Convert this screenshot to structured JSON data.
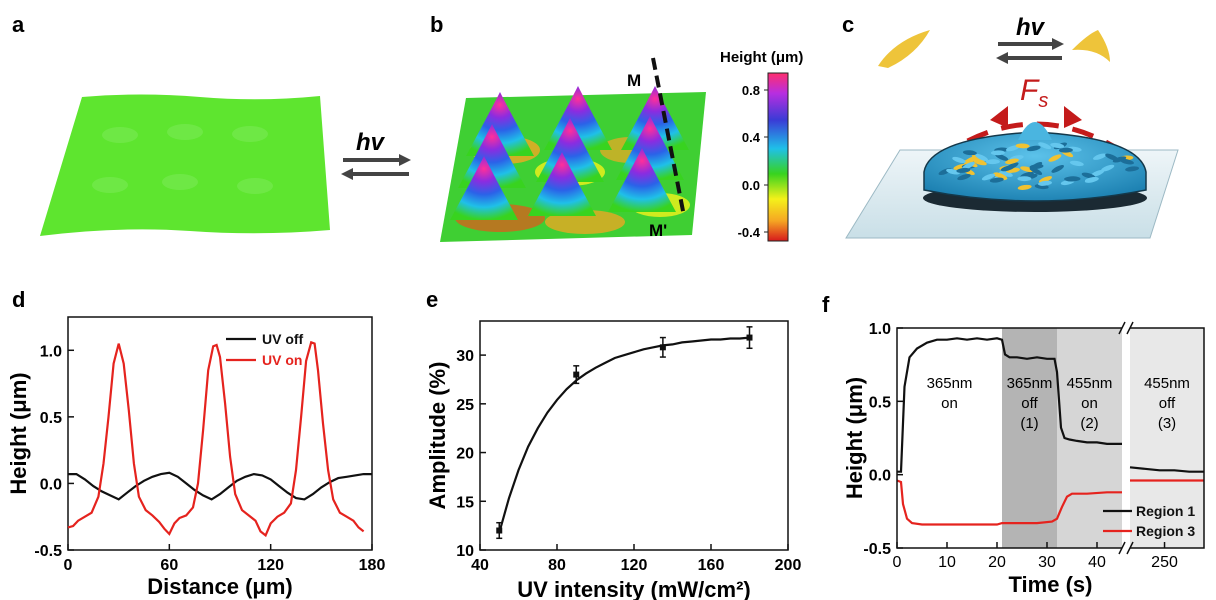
{
  "panels": {
    "a": "a",
    "b": "b",
    "c": "c",
    "d": "d",
    "e": "e",
    "f": "f"
  },
  "colors": {
    "surface_green": "#5ee52f",
    "black": "#111111",
    "red": "#e5231e",
    "uv_off": "#111111",
    "uv_on": "#e5231e",
    "colormap": [
      "#d7191c",
      "#f5a623",
      "#f4f11a",
      "#38d31f",
      "#1fc0e8",
      "#3a3bd6",
      "#b82ee0",
      "#ff2f6e"
    ],
    "shade_dark": "#b4b4b4",
    "shade_mid": "#d6d6d6",
    "shade_light": "#e8e8e8",
    "droplet": "#2d9fd0",
    "particle": "#f0c232",
    "force": "#c41b1b"
  },
  "annotations": {
    "hv": "hv",
    "fs_main": "F",
    "fs_sub": "s",
    "M": "M",
    "M_prime": "M'"
  },
  "colorbar": {
    "title": "Height (μm)",
    "ticks": [
      "0.8",
      "0.4",
      "0.0",
      "-0.4"
    ]
  },
  "chart_data": [
    {
      "panel": "d",
      "type": "line",
      "xlabel": "Distance (μm)",
      "ylabel": "Height (μm)",
      "xlim": [
        0,
        180
      ],
      "ylim": [
        -0.5,
        1.25
      ],
      "xticks": [
        "0",
        "60",
        "120",
        "180"
      ],
      "yticks": [
        "-0.5",
        "0.0",
        "0.5",
        "1.0"
      ],
      "legend_position": "top-right",
      "series": [
        {
          "name": "UV off",
          "color": "#111111",
          "x": [
            0,
            5,
            10,
            15,
            20,
            25,
            30,
            35,
            40,
            45,
            50,
            55,
            60,
            65,
            70,
            75,
            80,
            85,
            90,
            95,
            100,
            105,
            110,
            115,
            120,
            125,
            130,
            135,
            140,
            145,
            150,
            155,
            160,
            165,
            170,
            175,
            180
          ],
          "y": [
            0.07,
            0.07,
            0.03,
            -0.02,
            -0.06,
            -0.09,
            -0.12,
            -0.07,
            -0.02,
            0.02,
            0.05,
            0.07,
            0.08,
            0.05,
            0.0,
            -0.05,
            -0.09,
            -0.12,
            -0.08,
            -0.03,
            0.02,
            0.05,
            0.07,
            0.06,
            0.03,
            -0.02,
            -0.07,
            -0.11,
            -0.12,
            -0.08,
            -0.03,
            0.01,
            0.04,
            0.05,
            0.06,
            0.07,
            0.07
          ]
        },
        {
          "name": "UV on",
          "color": "#e5231e",
          "x": [
            0,
            3,
            6,
            10,
            14,
            18,
            21,
            24,
            27,
            30,
            33,
            36,
            39,
            42,
            46,
            50,
            54,
            57,
            60,
            63,
            66,
            70,
            74,
            77,
            80,
            83,
            86,
            88,
            90,
            93,
            96,
            99,
            103,
            107,
            111,
            114,
            117,
            120,
            124,
            128,
            132,
            135,
            138,
            141,
            144,
            146,
            148,
            151,
            154,
            157,
            161,
            165,
            169,
            172,
            175
          ],
          "y": [
            -0.33,
            -0.32,
            -0.28,
            -0.25,
            -0.22,
            -0.1,
            0.15,
            0.5,
            0.9,
            1.05,
            0.9,
            0.55,
            0.15,
            -0.1,
            -0.2,
            -0.24,
            -0.29,
            -0.34,
            -0.38,
            -0.3,
            -0.26,
            -0.24,
            -0.18,
            0.0,
            0.4,
            0.85,
            1.03,
            1.04,
            0.95,
            0.6,
            0.2,
            -0.08,
            -0.2,
            -0.24,
            -0.28,
            -0.36,
            -0.39,
            -0.3,
            -0.25,
            -0.22,
            -0.15,
            0.1,
            0.5,
            0.92,
            1.06,
            1.05,
            0.85,
            0.45,
            0.1,
            -0.12,
            -0.22,
            -0.25,
            -0.28,
            -0.33,
            -0.36
          ]
        }
      ]
    },
    {
      "panel": "e",
      "type": "scatter",
      "xlabel": "UV intensity (mW/cm²)",
      "ylabel": "Amplitude (%)",
      "xlim": [
        40,
        200
      ],
      "ylim": [
        10,
        33.5
      ],
      "xticks": [
        "40",
        "80",
        "120",
        "160",
        "200"
      ],
      "yticks": [
        "10",
        "15",
        "20",
        "25",
        "30"
      ],
      "points": {
        "x": [
          50,
          90,
          135,
          180
        ],
        "y": [
          12.0,
          28.0,
          30.8,
          31.8
        ],
        "err": [
          0.8,
          0.9,
          1.0,
          1.1
        ]
      },
      "fit": {
        "x": [
          50,
          55,
          60,
          65,
          70,
          75,
          80,
          85,
          90,
          95,
          100,
          105,
          110,
          115,
          120,
          125,
          130,
          135,
          140,
          145,
          150,
          155,
          160,
          165,
          170,
          175,
          180
        ],
        "y": [
          11.8,
          15.3,
          18.2,
          20.6,
          22.5,
          24.1,
          25.4,
          26.5,
          27.4,
          28.1,
          28.7,
          29.2,
          29.7,
          30.0,
          30.3,
          30.6,
          30.8,
          31.0,
          31.1,
          31.3,
          31.4,
          31.5,
          31.6,
          31.6,
          31.7,
          31.7,
          31.8
        ]
      }
    },
    {
      "panel": "f",
      "type": "line",
      "xlabel": "Time (s)",
      "ylabel": "Height (μm)",
      "ylim": [
        -0.5,
        1.0
      ],
      "yticks": [
        "-0.5",
        "0.0",
        "0.5",
        "1.0"
      ],
      "xticks": [
        "0",
        "10",
        "20",
        "30",
        "40",
        "250"
      ],
      "axis_break": {
        "left_xlim": [
          0,
          45
        ],
        "right_xlim": [
          243,
          258
        ]
      },
      "legend_position": "bottom-right",
      "regions": [
        {
          "label_lines": [
            "365nm",
            "on"
          ],
          "x0": 0,
          "x1": 21,
          "shade": "none"
        },
        {
          "label_lines": [
            "365nm",
            "off",
            "(1)"
          ],
          "x0": 21,
          "x1": 32,
          "shade": "dark"
        },
        {
          "label_lines": [
            "455nm",
            "on",
            "(2)"
          ],
          "x0": 32,
          "x1": 45,
          "shade": "mid"
        },
        {
          "label_lines": [
            "455nm",
            "off",
            "(3)"
          ],
          "x0": 243,
          "x1": 258,
          "shade": "light"
        }
      ],
      "series": [
        {
          "name": "Region 1",
          "color": "#111111",
          "left": {
            "x": [
              0,
              0.8,
              1.5,
              2.5,
              4,
              6,
              8,
              10,
              12,
              14,
              16,
              18,
              20,
              21,
              21.6,
              22.5,
              24,
              26,
              28,
              30,
              31.5,
              32,
              32.8,
              33.5,
              34.5,
              36,
              38,
              40,
              42,
              44,
              45
            ],
            "y": [
              0.02,
              0.02,
              0.6,
              0.8,
              0.86,
              0.9,
              0.92,
              0.92,
              0.93,
              0.92,
              0.93,
              0.92,
              0.93,
              0.92,
              0.82,
              0.8,
              0.8,
              0.79,
              0.8,
              0.79,
              0.79,
              0.7,
              0.32,
              0.25,
              0.24,
              0.23,
              0.22,
              0.22,
              0.21,
              0.21,
              0.21
            ]
          },
          "right": {
            "x": [
              243,
              246,
              249,
              252,
              255,
              258
            ],
            "y": [
              0.05,
              0.04,
              0.03,
              0.03,
              0.02,
              0.02
            ]
          }
        },
        {
          "name": "Region 3",
          "color": "#e5231e",
          "left": {
            "x": [
              0,
              0.8,
              1.2,
              2,
              3,
              5,
              8,
              12,
              16,
              20,
              21,
              24,
              28,
              31,
              32,
              33,
              34,
              35,
              38,
              42,
              45
            ],
            "y": [
              -0.04,
              -0.05,
              -0.2,
              -0.3,
              -0.33,
              -0.34,
              -0.34,
              -0.34,
              -0.34,
              -0.34,
              -0.33,
              -0.33,
              -0.33,
              -0.32,
              -0.3,
              -0.22,
              -0.15,
              -0.13,
              -0.13,
              -0.12,
              -0.12
            ]
          },
          "right": {
            "x": [
              243,
              246,
              249,
              252,
              255,
              258
            ],
            "y": [
              -0.04,
              -0.04,
              -0.04,
              -0.04,
              -0.04,
              -0.04
            ]
          }
        }
      ]
    }
  ]
}
